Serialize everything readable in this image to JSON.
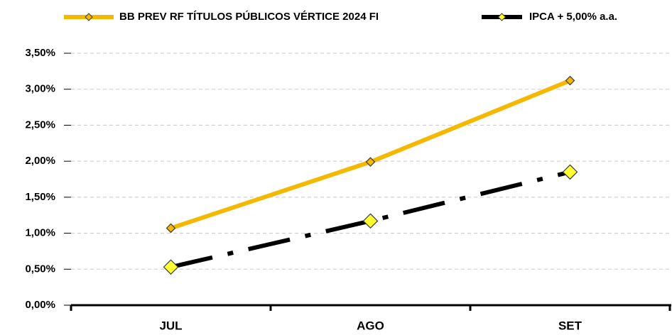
{
  "chart_data": {
    "type": "line",
    "categories": [
      "JUL",
      "AGO",
      "SET"
    ],
    "series": [
      {
        "name": "BB PREV RF TÍTULOS PÚBLICOS VÉRTICE 2024 FI",
        "color": "#f5b800",
        "marker_color": "#f5b800",
        "line_style": "solid",
        "values": [
          1.07,
          1.99,
          3.12
        ]
      },
      {
        "name": "IPCA + 5,00% a.a.",
        "color": "#000000",
        "marker_color": "#ffff33",
        "line_style": "dash-dot",
        "values": [
          0.53,
          1.17,
          1.85
        ]
      }
    ],
    "ylim": [
      0,
      3.5
    ],
    "yticks": [
      {
        "value": 0,
        "label": "0,00%"
      },
      {
        "value": 0.5,
        "label": "0,50%"
      },
      {
        "value": 1,
        "label": "1,00%"
      },
      {
        "value": 1.5,
        "label": "1,50%"
      },
      {
        "value": 2,
        "label": "2,00%"
      },
      {
        "value": 2.5,
        "label": "2,50%"
      },
      {
        "value": 3,
        "label": "3,00%"
      },
      {
        "value": 3.5,
        "label": "3,50%"
      }
    ],
    "grid": true,
    "legend": "top"
  }
}
